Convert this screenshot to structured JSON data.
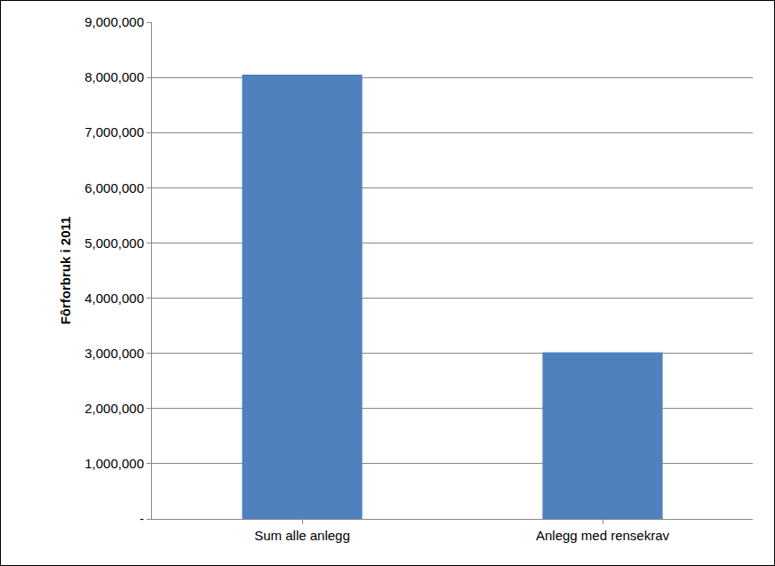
{
  "chart_data": {
    "type": "bar",
    "y_label": "Fôrforbruk i 2011",
    "categories": [
      "Sum alle anlegg",
      "Anlegg med rensekrav"
    ],
    "values": [
      8050000,
      3020000
    ],
    "color": "#4f81bd",
    "ylim": [
      0,
      9000000
    ],
    "yticks": [
      {
        "value": 0,
        "label": "-"
      },
      {
        "value": 1000000,
        "label": "1,000,000"
      },
      {
        "value": 2000000,
        "label": "2,000,000"
      },
      {
        "value": 3000000,
        "label": "3,000,000"
      },
      {
        "value": 4000000,
        "label": "4,000,000"
      },
      {
        "value": 5000000,
        "label": "5,000,000"
      },
      {
        "value": 6000000,
        "label": "6,000,000"
      },
      {
        "value": 7000000,
        "label": "7,000,000"
      },
      {
        "value": 8000000,
        "label": "8,000,000"
      },
      {
        "value": 9000000,
        "label": "9,000,000"
      }
    ],
    "grid": true
  }
}
